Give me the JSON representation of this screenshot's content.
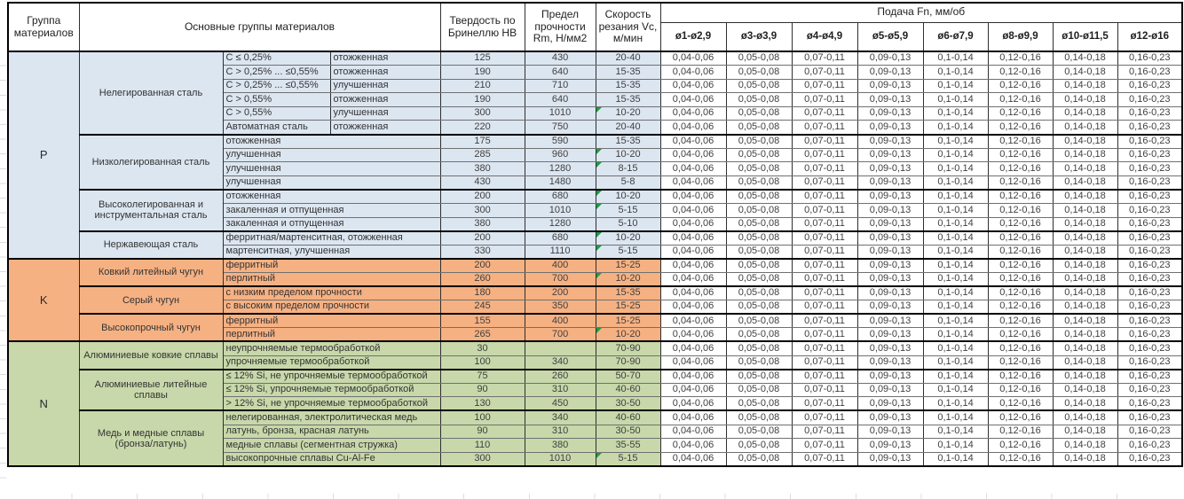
{
  "colors": {
    "group_p_blue": "#dce6f1",
    "group_k_orange": "#f6b183",
    "group_n_green": "#c8d8aa",
    "marker_green": "#1e9c45",
    "border_heavy": "#000000"
  },
  "table": {
    "header": {
      "group": "Группа материалов",
      "main_groups": "Основные группы материалов",
      "hardness": "Твердость по Бринеллю HB",
      "strength": "Предел прочности Rm, Н/мм2",
      "speed": "Скорость резания Vc, м/мин",
      "feed": "Подача Fn, мм/об",
      "feed_diameters": [
        "ø1-ø2,9",
        "ø3-ø3,9",
        "ø4-ø4,9",
        "ø5-ø5,9",
        "ø6-ø7,9",
        "ø8-ø9,9",
        "ø10-ø11,5",
        "ø12-ø16"
      ]
    },
    "feed_values": [
      "0,04-0,06",
      "0,05-0,08",
      "0,07-0,11",
      "0,09-0,13",
      "0,1-0,14",
      "0,12-0,16",
      "0,14-0,18",
      "0,16-0,23"
    ],
    "groups": [
      {
        "letter": "P",
        "color": "#dce6f1",
        "subgroups": [
          {
            "name": "Нелегированная сталь",
            "rows": [
              {
                "d1": "C ≤ 0,25%",
                "d2": "отожженная",
                "hb": "125",
                "rm": "430",
                "vc": "20-40",
                "marker": false
              },
              {
                "d1": "C > 0,25% ... ≤0,55%",
                "d2": "отожженная",
                "hb": "190",
                "rm": "640",
                "vc": "15-35",
                "marker": false
              },
              {
                "d1": "C > 0,25% ... ≤0,55%",
                "d2": "улучшенная",
                "hb": "210",
                "rm": "710",
                "vc": "15-35",
                "marker": false
              },
              {
                "d1": "C > 0,55%",
                "d2": "отожженная",
                "hb": "190",
                "rm": "640",
                "vc": "15-35",
                "marker": false
              },
              {
                "d1": "C > 0,55%",
                "d2": "улучшенная",
                "hb": "300",
                "rm": "1010",
                "vc": "10-20",
                "marker": true
              },
              {
                "d1": "Автоматная сталь",
                "d2": "отожженная",
                "hb": "220",
                "rm": "750",
                "vc": "20-40",
                "marker": false
              }
            ]
          },
          {
            "name": "Низколегированная сталь",
            "rows": [
              {
                "d1": "отожженная",
                "hb": "175",
                "rm": "590",
                "vc": "15-35",
                "marker": false
              },
              {
                "d1": "улучшенная",
                "hb": "285",
                "rm": "960",
                "vc": "10-20",
                "marker": true
              },
              {
                "d1": "улучшенная",
                "hb": "380",
                "rm": "1280",
                "vc": "8-15",
                "marker": true
              },
              {
                "d1": "улучшенная",
                "hb": "430",
                "rm": "1480",
                "vc": "5-8",
                "marker": false
              }
            ]
          },
          {
            "name": "Высоколегированная и инструментальная сталь",
            "rows": [
              {
                "d1": "отожженная",
                "hb": "200",
                "rm": "680",
                "vc": "10-20",
                "marker": true
              },
              {
                "d1": "закаленная и отпущенная",
                "hb": "300",
                "rm": "1010",
                "vc": "5-15",
                "marker": true
              },
              {
                "d1": "закаленная и отпущенная",
                "hb": "380",
                "rm": "1280",
                "vc": "5-10",
                "marker": false
              }
            ]
          },
          {
            "name": "Нержавеющая сталь",
            "rows": [
              {
                "d1": "ферритная/мартенситная, отожженная",
                "hb": "200",
                "rm": "680",
                "vc": "10-20",
                "marker": true
              },
              {
                "d1": "мартенситная, улучшенная",
                "hb": "330",
                "rm": "1110",
                "vc": "5-15",
                "marker": true
              }
            ]
          }
        ]
      },
      {
        "letter": "K",
        "color": "#f6b183",
        "subgroups": [
          {
            "name": "Ковкий литейный чугун",
            "rows": [
              {
                "d1": "ферритный",
                "hb": "200",
                "rm": "400",
                "vc": "15-25",
                "marker": false
              },
              {
                "d1": "перлитный",
                "hb": "260",
                "rm": "700",
                "vc": "10-20",
                "marker": true
              }
            ]
          },
          {
            "name": "Серый чугун",
            "rows": [
              {
                "d1": "с низким пределом прочности",
                "hb": "180",
                "rm": "200",
                "vc": "15-35",
                "marker": false
              },
              {
                "d1": "с высоким пределом прочности",
                "hb": "245",
                "rm": "350",
                "vc": "15-25",
                "marker": false
              }
            ]
          },
          {
            "name": "Высокопрочный чугун",
            "rows": [
              {
                "d1": "ферритный",
                "hb": "155",
                "rm": "400",
                "vc": "15-25",
                "marker": false
              },
              {
                "d1": "перлитный",
                "hb": "265",
                "rm": "700",
                "vc": "10-20",
                "marker": true
              }
            ]
          }
        ]
      },
      {
        "letter": "N",
        "color": "#c8d8aa",
        "subgroups": [
          {
            "name": "Алюминиевые ковкие сплавы",
            "rows": [
              {
                "d1": "неупрочняемые термообработкой",
                "hb": "30",
                "rm": "",
                "vc": "70-90",
                "marker": false
              },
              {
                "d1": "упрочняемые термообработкой",
                "hb": "100",
                "rm": "340",
                "vc": "70-90",
                "marker": false
              }
            ]
          },
          {
            "name": "Алюминиевые литейные сплавы",
            "rows": [
              {
                "d1": "≤ 12% Si, не упрочняемые термообработкой",
                "hb": "75",
                "rm": "260",
                "vc": "50-70",
                "marker": false
              },
              {
                "d1": "≤ 12% Si, упрочняемые термообработкой",
                "hb": "90",
                "rm": "310",
                "vc": "40-60",
                "marker": false
              },
              {
                "d1": "> 12% Si, не упрочняемые термообработкой",
                "hb": "130",
                "rm": "450",
                "vc": "30-50",
                "marker": false
              }
            ]
          },
          {
            "name": "Медь и медные сплавы (бронза/латунь)",
            "rows": [
              {
                "d1": "нелегированная, электролитическая медь",
                "hb": "100",
                "rm": "340",
                "vc": "40-60",
                "marker": false
              },
              {
                "d1": "латунь, бронза, красная латунь",
                "hb": "90",
                "rm": "310",
                "vc": "30-50",
                "marker": false
              },
              {
                "d1": "медные сплавы (сегментная стружка)",
                "hb": "110",
                "rm": "380",
                "vc": "35-55",
                "marker": false
              },
              {
                "d1": "высокопрочные сплавы Cu-Al-Fe",
                "hb": "300",
                "rm": "1010",
                "vc": "5-15",
                "marker": true
              }
            ]
          }
        ]
      }
    ]
  }
}
